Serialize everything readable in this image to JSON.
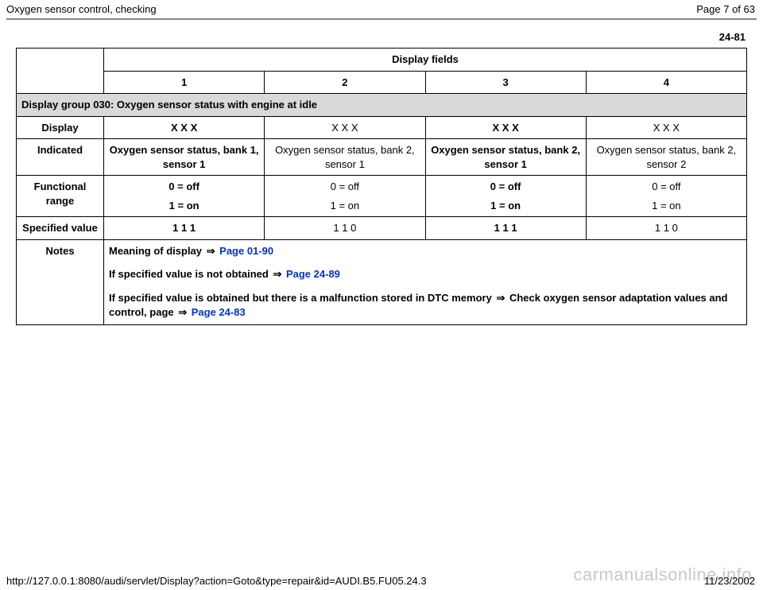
{
  "header": {
    "title": "Oxygen sensor control, checking",
    "page_indicator": "Page 7 of 63"
  },
  "page_number": "24-81",
  "table": {
    "display_fields_label": "Display fields",
    "field_numbers": [
      "1",
      "2",
      "3",
      "4"
    ],
    "group_header": "Display group 030: Oxygen sensor status with engine at idle",
    "rows": {
      "display": {
        "label": "Display",
        "values": [
          "X X X",
          "X X X",
          "X X X",
          "X X X"
        ],
        "bold_flags": [
          true,
          false,
          true,
          false
        ]
      },
      "indicated": {
        "label": "Indicated",
        "values": [
          "Oxygen sensor status, bank 1, sensor 1",
          "Oxygen sensor status, bank 2, sensor 1",
          "Oxygen sensor status, bank 2, sensor 1",
          "Oxygen sensor status, bank 2, sensor 2"
        ],
        "bold_flags": [
          true,
          false,
          true,
          false
        ]
      },
      "functional_range": {
        "label": "Functional range",
        "line1": [
          "0 = off",
          "0 = off",
          "0 = off",
          "0 = off"
        ],
        "line2": [
          "1 = on",
          "1 = on",
          "1 = on",
          "1 = on"
        ],
        "bold_flags": [
          true,
          false,
          true,
          false
        ]
      },
      "specified_value": {
        "label": "Specified value",
        "values": [
          "1 1 1",
          "1 1 0",
          "1 1 1",
          "1 1 0"
        ],
        "bold_flags": [
          true,
          false,
          true,
          false
        ]
      },
      "notes": {
        "label": "Notes",
        "note1_prefix": "Meaning of display ",
        "note1_link": "Page 01-90",
        "note2_prefix": "If specified value is not obtained  ",
        "note2_link": "Page 24-89",
        "note3_prefix": "If specified value is obtained but there is a malfunction stored in DTC memory ",
        "note3_mid": "Check oxygen sensor adaptation values and control, page ",
        "note3_link": "Page 24-83"
      }
    }
  },
  "arrow_glyph": "⇒",
  "footer": {
    "url": "http://127.0.0.1:8080/audi/servlet/Display?action=Goto&type=repair&id=AUDI.B5.FU05.24.3",
    "date": "11/23/2002"
  },
  "watermark": "carmanualsonline.info",
  "style": {
    "background_color": "#ffffff",
    "text_color": "#000000",
    "link_color": "#0033cc",
    "section_header_bg": "#d9d9d9",
    "rule_color": "#888888",
    "watermark_color": "#c8c8c8",
    "base_font_size_pt": 10,
    "bold_weight": 700
  }
}
